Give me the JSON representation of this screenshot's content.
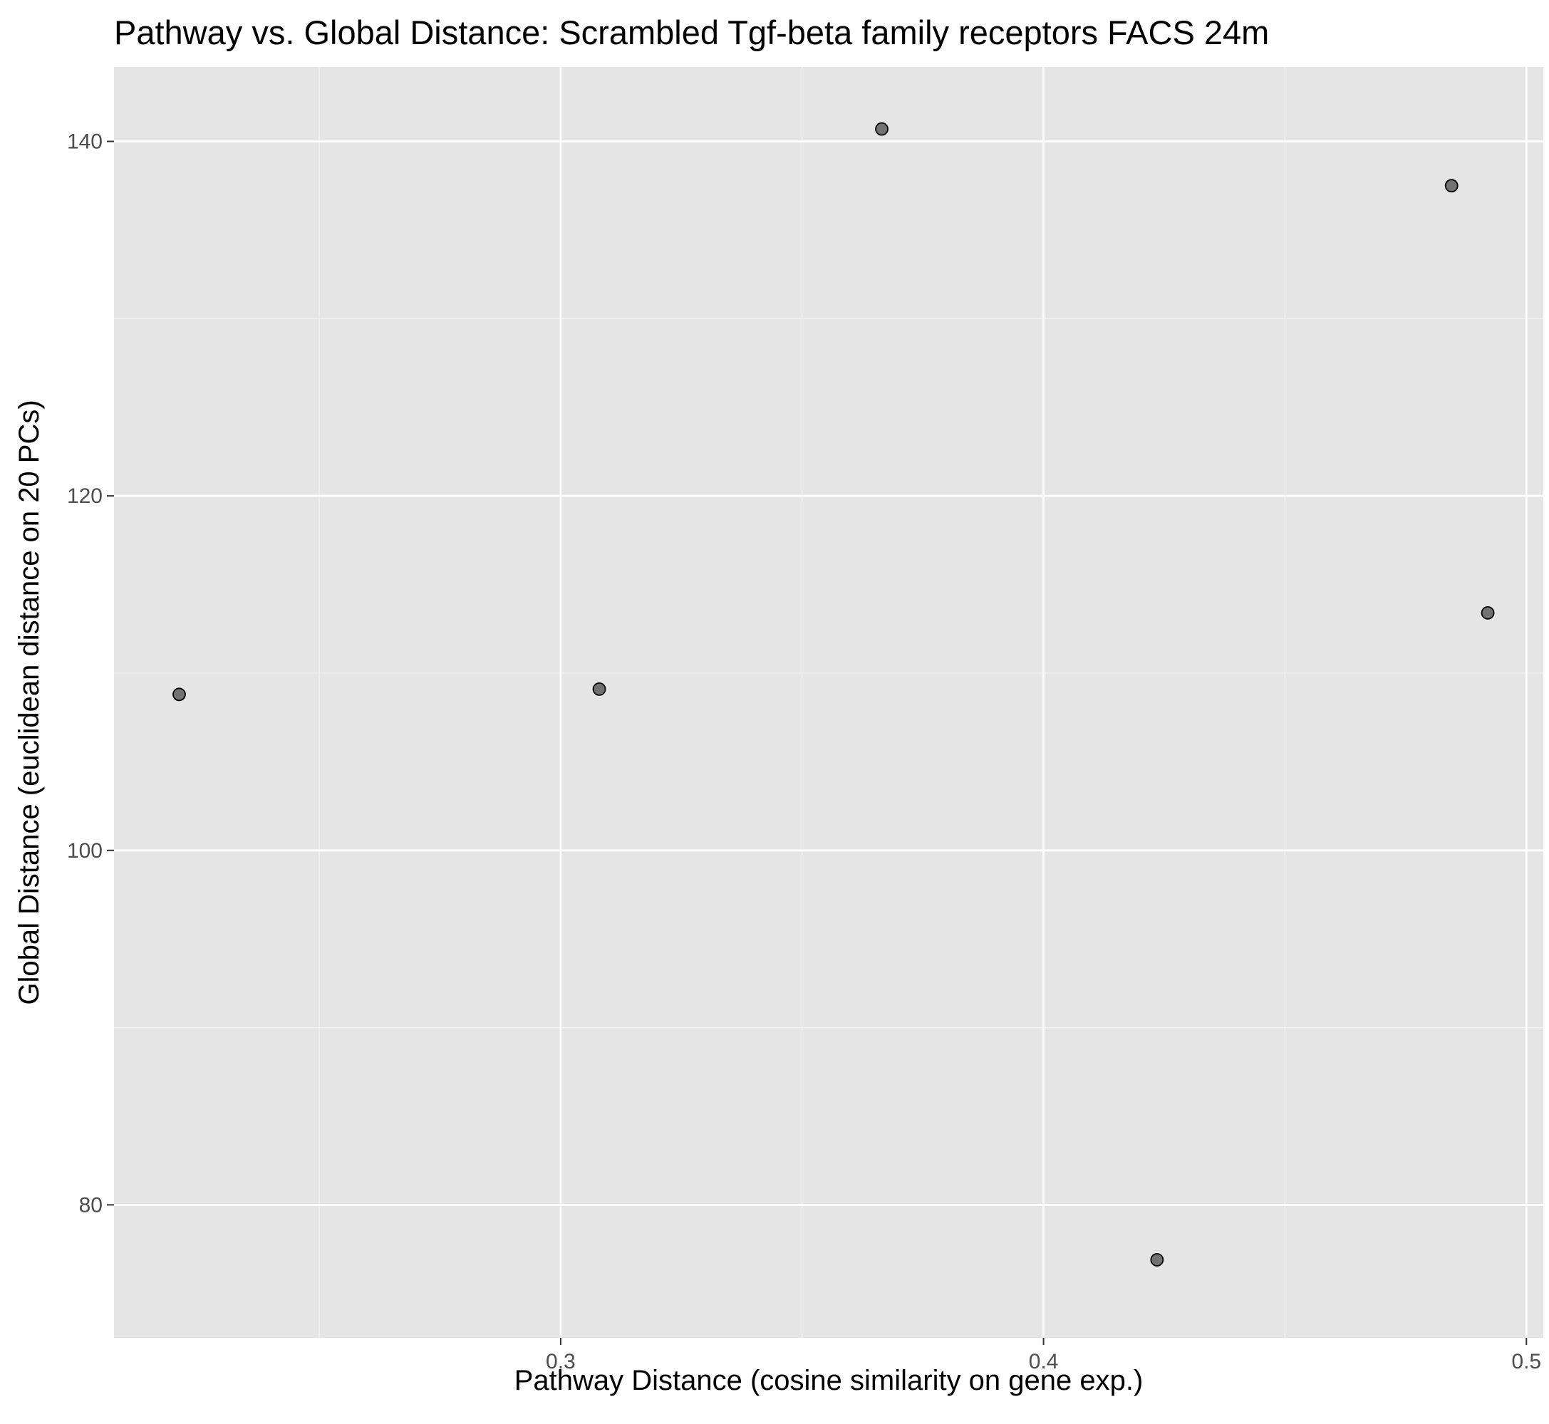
{
  "chart_data": {
    "type": "scatter",
    "title": "Pathway vs. Global Distance: Scrambled Tgf-beta family receptors FACS 24m",
    "xlabel": "Pathway Distance (cosine similarity on gene exp.)",
    "ylabel": "Global Distance (euclidean distance on 20 PCs)",
    "xlim": [
      0.2075,
      0.5035
    ],
    "ylim": [
      72.5,
      144.2
    ],
    "x_ticks": [
      {
        "value": 0.3,
        "label": "0.3"
      },
      {
        "value": 0.4,
        "label": "0.4"
      },
      {
        "value": 0.5,
        "label": "0.5"
      }
    ],
    "y_ticks": [
      {
        "value": 80,
        "label": "80"
      },
      {
        "value": 100,
        "label": "100"
      },
      {
        "value": 120,
        "label": "120"
      },
      {
        "value": 140,
        "label": "140"
      }
    ],
    "x_minor_ticks": [
      0.25,
      0.35,
      0.45
    ],
    "y_minor_ticks": [
      90,
      110,
      130
    ],
    "grid": true,
    "points": [
      {
        "x": 0.221,
        "y": 108.8
      },
      {
        "x": 0.308,
        "y": 109.1
      },
      {
        "x": 0.3665,
        "y": 140.7
      },
      {
        "x": 0.4235,
        "y": 76.9
      },
      {
        "x": 0.4845,
        "y": 137.5
      },
      {
        "x": 0.492,
        "y": 113.4
      }
    ],
    "colors": {
      "panel_background": "#e5e5e5",
      "grid_major": "#ffffff",
      "grid_minor": "#f2f2f2",
      "point_fill": "#000000",
      "point_fill_opacity": 0.5,
      "tick_color": "#333333"
    }
  }
}
